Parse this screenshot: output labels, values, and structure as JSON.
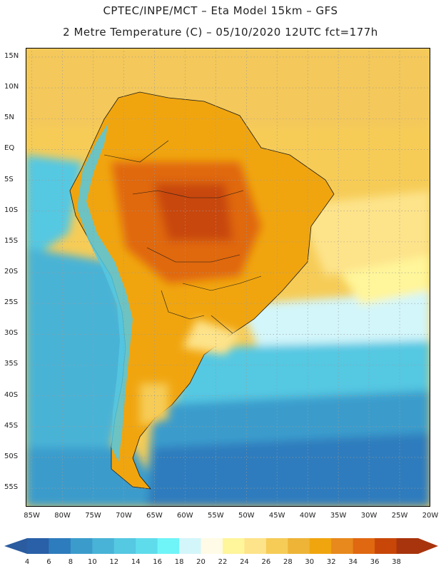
{
  "title": {
    "line1": "CPTEC/INPE/MCT –  Eta Model 15km – GFS",
    "line2": "2 Metre Temperature (C) – 05/10/2020 12UTC fct=177h"
  },
  "map": {
    "region": "South America",
    "lat_labels": [
      "15N",
      "10N",
      "5N",
      "EQ",
      "5S",
      "10S",
      "15S",
      "20S",
      "25S",
      "30S",
      "35S",
      "40S",
      "45S",
      "50S",
      "55S"
    ],
    "lon_labels": [
      "85W",
      "80W",
      "75W",
      "70W",
      "65W",
      "60W",
      "55W",
      "50W",
      "45W",
      "40W",
      "35W",
      "30W",
      "25W",
      "20W"
    ],
    "lat_values": [
      15,
      10,
      5,
      0,
      -5,
      -10,
      -15,
      -20,
      -25,
      -30,
      -35,
      -40,
      -45,
      -50,
      -55
    ],
    "lon_values": [
      -85,
      -80,
      -75,
      -70,
      -65,
      -60,
      -55,
      -50,
      -45,
      -40,
      -35,
      -30,
      -25,
      -20
    ],
    "lat_range": [
      -58,
      16.5
    ],
    "lon_range": [
      -86,
      -20
    ]
  },
  "colorbar": {
    "labels": [
      "4",
      "6",
      "8",
      "10",
      "12",
      "14",
      "16",
      "18",
      "20",
      "22",
      "24",
      "26",
      "28",
      "30",
      "32",
      "34",
      "36",
      "38"
    ],
    "colors": [
      "#2a60a8",
      "#2d7cbd",
      "#3b9ccc",
      "#48b3d6",
      "#55c8e2",
      "#5fdceb",
      "#6ff4f8",
      "#d3f6fa",
      "#fffbe6",
      "#fff59a",
      "#fde38a",
      "#f6cc57",
      "#edb437",
      "#f0a50f",
      "#e7891d",
      "#e06811",
      "#c84708",
      "#a8340d"
    ],
    "low_color": "#2a5c9f",
    "high_color": "#a8340d"
  }
}
